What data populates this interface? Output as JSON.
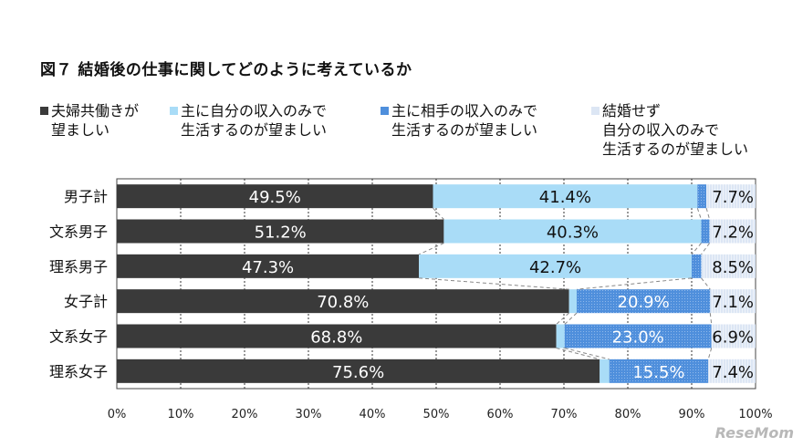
{
  "chart_data": {
    "type": "bar",
    "orientation": "horizontal",
    "stacked": true,
    "title": "図７ 結婚後の仕事に関してどのように考えているか",
    "categories": [
      "男子計",
      "文系男子",
      "理系男子",
      "女子計",
      "文系女子",
      "理系女子"
    ],
    "series": [
      {
        "name": "夫婦共働きが\n望ましい",
        "color": "#3a3a3a",
        "values": [
          49.5,
          51.2,
          47.3,
          70.8,
          68.8,
          75.6
        ],
        "labels": [
          "49.5%",
          "51.2%",
          "47.3%",
          "70.8%",
          "68.8%",
          "75.6%"
        ]
      },
      {
        "name": "主に自分の収入のみで\n生活するのが望ましい",
        "color": "#a9dcf7",
        "values": [
          41.4,
          40.3,
          42.7,
          1.2,
          1.3,
          1.5
        ],
        "labels": [
          "41.4%",
          "40.3%",
          "42.7%",
          "",
          "",
          ""
        ]
      },
      {
        "name": "主に相手の収入のみで\n生活するのが望ましい",
        "color": "#4f8fdc",
        "values": [
          1.4,
          1.3,
          1.5,
          20.9,
          23.0,
          15.5
        ],
        "labels": [
          "",
          "",
          "",
          "20.9%",
          "23.0%",
          "15.5%"
        ]
      },
      {
        "name": "結婚せず\n自分の収入のみで\n生活するのが望ましい",
        "color": "#dce6f4",
        "values": [
          7.7,
          7.2,
          8.5,
          7.1,
          6.9,
          7.4
        ],
        "labels": [
          "7.7%",
          "7.2%",
          "8.5%",
          "7.1%",
          "6.9%",
          "7.4%"
        ]
      }
    ],
    "xlim": [
      0,
      100
    ],
    "xticks": [
      "0%",
      "10%",
      "20%",
      "30%",
      "40%",
      "50%",
      "60%",
      "70%",
      "80%",
      "90%",
      "100%"
    ],
    "grid": true,
    "legend_placement": "top"
  },
  "watermark": "ReseMom"
}
